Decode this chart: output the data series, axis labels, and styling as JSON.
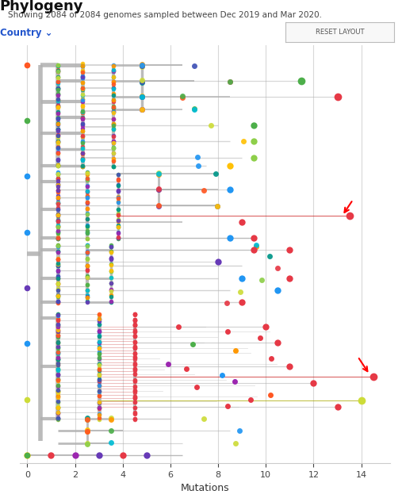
{
  "title_top": "Showing 2084 of 2084 genomes sampled between Dec 2019 and Mar 2020.",
  "title_phylogeny": "Phylogeny",
  "subtitle": "Country ⌄",
  "button_text": "RESET LAYOUT",
  "xlabel": "Mutations",
  "xlim": [
    -0.3,
    15.2
  ],
  "ylim": [
    -0.02,
    1.02
  ],
  "background_color": "#ffffff",
  "grid_color": "#d8d8d8",
  "tree_line_color": "#b0b0b0",
  "xticks": [
    0,
    2,
    4,
    6,
    8,
    10,
    12,
    14
  ],
  "colors_pool": [
    "#e63946",
    "#4daf4a",
    "#8ecf4a",
    "#cddc39",
    "#ffc107",
    "#ff9800",
    "#9c27b0",
    "#673ab7",
    "#3f51b5",
    "#2196f3",
    "#00bcd4",
    "#ff5722",
    "#009688"
  ]
}
